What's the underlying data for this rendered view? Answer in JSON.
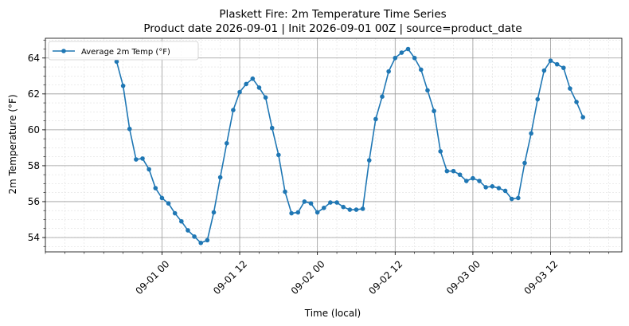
{
  "chart_data": {
    "type": "line",
    "title": "Plaskett Fire: 2m Temperature Time Series",
    "subtitle": "Product date 2026-09-01 | Init 2026-09-01 00Z | source=product_date",
    "xlabel": "Time (local)",
    "ylabel": "2m Temperature (°F)",
    "xlim": [
      "2026-08-31 06:00",
      "2026-09-03 23:00"
    ],
    "ylim": [
      53.2,
      65.1
    ],
    "x_ticks": [
      {
        "value": "2026-09-01 00:00",
        "label": "09-01 00"
      },
      {
        "value": "2026-09-01 12:00",
        "label": "09-01 12"
      },
      {
        "value": "2026-09-02 00:00",
        "label": "09-02 00"
      },
      {
        "value": "2026-09-02 12:00",
        "label": "09-02 12"
      },
      {
        "value": "2026-09-03 00:00",
        "label": "09-03 00"
      },
      {
        "value": "2026-09-03 12:00",
        "label": "09-03 12"
      }
    ],
    "y_ticks": [
      54,
      56,
      58,
      60,
      62,
      64
    ],
    "grid": "major-and-minor",
    "legend_position": "top-left",
    "series_color": "#1f77b4",
    "series": [
      {
        "name": "Average 2m Temp (°F)",
        "x": [
          "2026-08-31 17:00",
          "2026-08-31 18:00",
          "2026-08-31 19:00",
          "2026-08-31 20:00",
          "2026-08-31 21:00",
          "2026-08-31 22:00",
          "2026-08-31 23:00",
          "2026-09-01 00:00",
          "2026-09-01 01:00",
          "2026-09-01 02:00",
          "2026-09-01 03:00",
          "2026-09-01 04:00",
          "2026-09-01 05:00",
          "2026-09-01 06:00",
          "2026-09-01 07:00",
          "2026-09-01 08:00",
          "2026-09-01 09:00",
          "2026-09-01 10:00",
          "2026-09-01 11:00",
          "2026-09-01 12:00",
          "2026-09-01 13:00",
          "2026-09-01 14:00",
          "2026-09-01 15:00",
          "2026-09-01 16:00",
          "2026-09-01 17:00",
          "2026-09-01 18:00",
          "2026-09-01 19:00",
          "2026-09-01 20:00",
          "2026-09-01 21:00",
          "2026-09-01 22:00",
          "2026-09-01 23:00",
          "2026-09-02 00:00",
          "2026-09-02 01:00",
          "2026-09-02 02:00",
          "2026-09-02 03:00",
          "2026-09-02 04:00",
          "2026-09-02 05:00",
          "2026-09-02 06:00",
          "2026-09-02 07:00",
          "2026-09-02 08:00",
          "2026-09-02 09:00",
          "2026-09-02 10:00",
          "2026-09-02 11:00",
          "2026-09-02 12:00",
          "2026-09-02 13:00",
          "2026-09-02 14:00",
          "2026-09-02 15:00",
          "2026-09-02 16:00",
          "2026-09-02 17:00",
          "2026-09-02 18:00",
          "2026-09-02 19:00",
          "2026-09-02 20:00",
          "2026-09-02 21:00",
          "2026-09-02 22:00",
          "2026-09-02 23:00",
          "2026-09-03 00:00",
          "2026-09-03 01:00",
          "2026-09-03 02:00",
          "2026-09-03 03:00",
          "2026-09-03 04:00",
          "2026-09-03 05:00",
          "2026-09-03 06:00",
          "2026-09-03 07:00",
          "2026-09-03 08:00",
          "2026-09-03 09:00",
          "2026-09-03 10:00",
          "2026-09-03 11:00",
          "2026-09-03 12:00",
          "2026-09-03 13:00",
          "2026-09-03 14:00",
          "2026-09-03 15:00",
          "2026-09-03 16:00",
          "2026-09-03 17:00"
        ],
        "y": [
          63.8,
          62.45,
          60.05,
          58.35,
          58.4,
          57.8,
          56.75,
          56.2,
          55.9,
          55.35,
          54.9,
          54.4,
          54.05,
          53.7,
          53.85,
          55.4,
          57.35,
          59.25,
          61.1,
          62.1,
          62.55,
          62.85,
          62.35,
          61.8,
          60.1,
          58.6,
          56.55,
          55.35,
          55.4,
          56.0,
          55.9,
          55.4,
          55.65,
          55.95,
          55.95,
          55.7,
          55.55,
          55.55,
          55.6,
          58.3,
          60.6,
          61.85,
          63.25,
          64.0,
          64.3,
          64.5,
          64.0,
          63.35,
          62.2,
          61.05,
          58.8,
          57.7,
          57.7,
          57.5,
          57.15,
          57.3,
          57.15,
          56.8,
          56.85,
          56.75,
          56.6,
          56.15,
          56.2,
          58.15,
          59.8,
          61.7,
          63.3,
          63.85,
          63.65,
          63.45,
          62.3,
          61.55,
          60.7
        ]
      }
    ]
  }
}
